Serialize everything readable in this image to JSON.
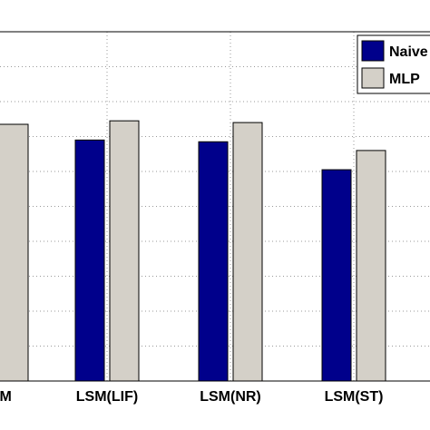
{
  "chart_data": {
    "type": "bar",
    "categories": [
      "LSM",
      "LSM(LIF)",
      "LSM(NR)",
      "LSM(ST)"
    ],
    "series": [
      {
        "name": "Naive",
        "color": "#00008b",
        "values": [
          null,
          0.69,
          0.685,
          0.605
        ]
      },
      {
        "name": "MLP",
        "color": "#d4d0c8",
        "values": [
          0.735,
          0.745,
          0.74,
          0.66
        ]
      }
    ],
    "ylim": [
      0,
      1
    ],
    "grid": true,
    "legend_position": "top-right"
  }
}
